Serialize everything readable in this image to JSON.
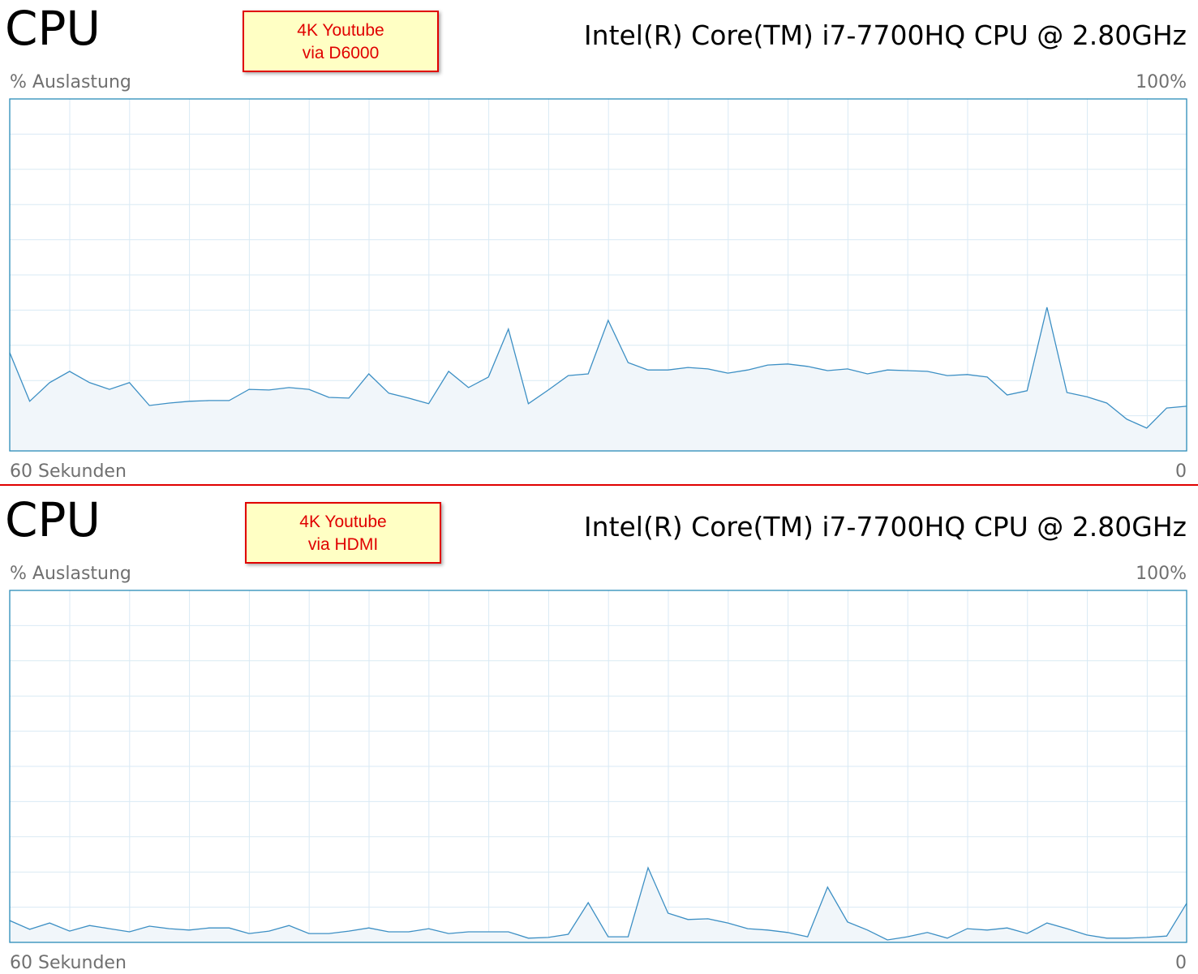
{
  "chart_data": [
    {
      "type": "area",
      "title": "CPU",
      "subtitle": "Intel(R) Core(TM) i7-7700HQ CPU @ 2.80GHz",
      "annotation": [
        "4K Youtube",
        "via D6000"
      ],
      "y_label": "% Auslastung",
      "x_label_start": "60 Sekunden",
      "x_label_end": "0",
      "ylim": [
        0,
        100
      ],
      "yticks": [
        {
          "value": 100,
          "label": "100%"
        }
      ],
      "grid": true,
      "color": "#3c8fc4",
      "values": [
        27.9,
        14.1,
        19.4,
        22.6,
        19.4,
        17.5,
        19.4,
        12.9,
        13.6,
        14.1,
        14.3,
        14.3,
        17.5,
        17.3,
        18.0,
        17.5,
        15.2,
        15.0,
        21.9,
        16.4,
        15.0,
        13.4,
        22.6,
        18.0,
        21.0,
        34.6,
        13.4,
        17.3,
        21.4,
        21.9,
        37.1,
        25.1,
        23.0,
        23.0,
        23.7,
        23.3,
        22.1,
        23.0,
        24.4,
        24.7,
        24.0,
        22.8,
        23.3,
        21.9,
        23.0,
        22.8,
        22.6,
        21.4,
        21.7,
        21.0,
        15.9,
        17.1,
        40.8,
        16.6,
        15.4,
        13.6,
        9.0,
        6.5,
        12.2,
        12.7
      ]
    },
    {
      "type": "area",
      "title": "CPU",
      "subtitle": "Intel(R) Core(TM) i7-7700HQ CPU @ 2.80GHz",
      "annotation": [
        "4K Youtube",
        "via HDMI"
      ],
      "y_label": "% Auslastung",
      "x_label_start": "60 Sekunden",
      "x_label_end": "0",
      "ylim": [
        0,
        100
      ],
      "yticks": [
        {
          "value": 100,
          "label": "100%"
        }
      ],
      "grid": true,
      "color": "#3c8fc4",
      "values": [
        6.2,
        3.7,
        5.5,
        3.2,
        4.8,
        3.9,
        3.0,
        4.6,
        3.9,
        3.5,
        4.1,
        4.1,
        2.5,
        3.2,
        4.8,
        2.5,
        2.5,
        3.2,
        4.1,
        3.0,
        3.0,
        3.9,
        2.5,
        3.0,
        3.0,
        3.0,
        1.2,
        1.4,
        2.3,
        11.3,
        1.6,
        1.6,
        21.2,
        8.3,
        6.5,
        6.7,
        5.5,
        3.9,
        3.5,
        2.8,
        1.6,
        15.7,
        5.8,
        3.5,
        0.7,
        1.6,
        2.8,
        1.2,
        3.9,
        3.5,
        4.1,
        2.5,
        5.5,
        3.9,
        2.1,
        1.2,
        1.2,
        1.4,
        1.8,
        11.1
      ]
    }
  ]
}
